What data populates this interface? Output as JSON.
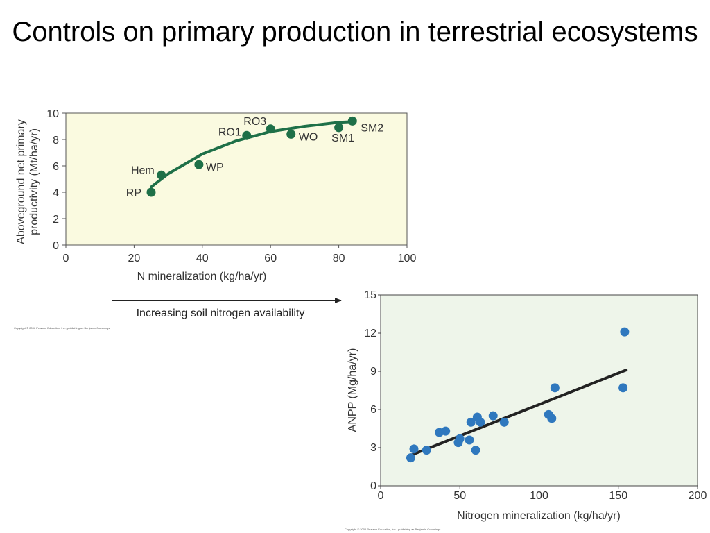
{
  "slide": {
    "title": "Controls on primary production in terrestrial ecosystems",
    "arrow_caption": "Increasing soil nitrogen availability",
    "copyright_1": "Copyright © 2006 Pearson Education, Inc., publishing as Benjamin Cummings",
    "copyright_2": "Copyright © 2006 Pearson Education, Inc., publishing as Benjamin Cummings"
  },
  "colors": {
    "chart1_bg": "#fafae0",
    "chart1_series": "#1e7048",
    "chart2_bg": "#eef5ea",
    "chart2_points": "#2f78be",
    "chart2_line": "#222222"
  },
  "chart_data": [
    {
      "type": "scatter",
      "title": "",
      "xlabel": "N mineralization (kg/ha/yr)",
      "ylabel_lines": [
        "Aboveground net primary",
        "productivity (Mt/ha/yr)"
      ],
      "xlim": [
        0,
        100
      ],
      "ylim": [
        0,
        10
      ],
      "xticks": [
        0,
        20,
        40,
        60,
        80,
        100
      ],
      "yticks": [
        0,
        2,
        4,
        6,
        8,
        10
      ],
      "grid": false,
      "points": [
        {
          "label": "RP",
          "x": 25,
          "y": 4.0
        },
        {
          "label": "Hem",
          "x": 28,
          "y": 5.3
        },
        {
          "label": "WP",
          "x": 39,
          "y": 6.1
        },
        {
          "label": "RO1",
          "x": 53,
          "y": 8.3
        },
        {
          "label": "RO3",
          "x": 60,
          "y": 8.8
        },
        {
          "label": "WO",
          "x": 66,
          "y": 8.4
        },
        {
          "label": "SM1",
          "x": 80,
          "y": 8.9
        },
        {
          "label": "SM2",
          "x": 84,
          "y": 9.4
        }
      ],
      "fit_curve": {
        "x": [
          25,
          30,
          40,
          50,
          60,
          70,
          80,
          84
        ],
        "y": [
          4.4,
          5.4,
          6.9,
          7.9,
          8.6,
          9.0,
          9.3,
          9.35
        ]
      }
    },
    {
      "type": "scatter",
      "title": "",
      "xlabel": "Nitrogen mineralization (kg/ha/yr)",
      "ylabel": "ANPP (Mg/ha/yr)",
      "xlim": [
        0,
        200
      ],
      "ylim": [
        0,
        15
      ],
      "xticks": [
        0,
        50,
        100,
        150,
        200
      ],
      "yticks": [
        0,
        3,
        6,
        9,
        12,
        15
      ],
      "grid": false,
      "points": [
        {
          "x": 19,
          "y": 2.2
        },
        {
          "x": 21,
          "y": 2.9
        },
        {
          "x": 29,
          "y": 2.8
        },
        {
          "x": 37,
          "y": 4.2
        },
        {
          "x": 41,
          "y": 4.3
        },
        {
          "x": 49,
          "y": 3.4
        },
        {
          "x": 50,
          "y": 3.7
        },
        {
          "x": 56,
          "y": 3.6
        },
        {
          "x": 57,
          "y": 5.0
        },
        {
          "x": 60,
          "y": 2.8
        },
        {
          "x": 61,
          "y": 5.4
        },
        {
          "x": 63,
          "y": 5.0
        },
        {
          "x": 71,
          "y": 5.5
        },
        {
          "x": 78,
          "y": 5.0
        },
        {
          "x": 106,
          "y": 5.6
        },
        {
          "x": 108,
          "y": 5.3
        },
        {
          "x": 110,
          "y": 7.7
        },
        {
          "x": 153,
          "y": 7.7
        },
        {
          "x": 154,
          "y": 12.1
        }
      ],
      "trend_line": {
        "x": [
          19,
          155
        ],
        "y": [
          2.4,
          9.1
        ]
      }
    }
  ]
}
